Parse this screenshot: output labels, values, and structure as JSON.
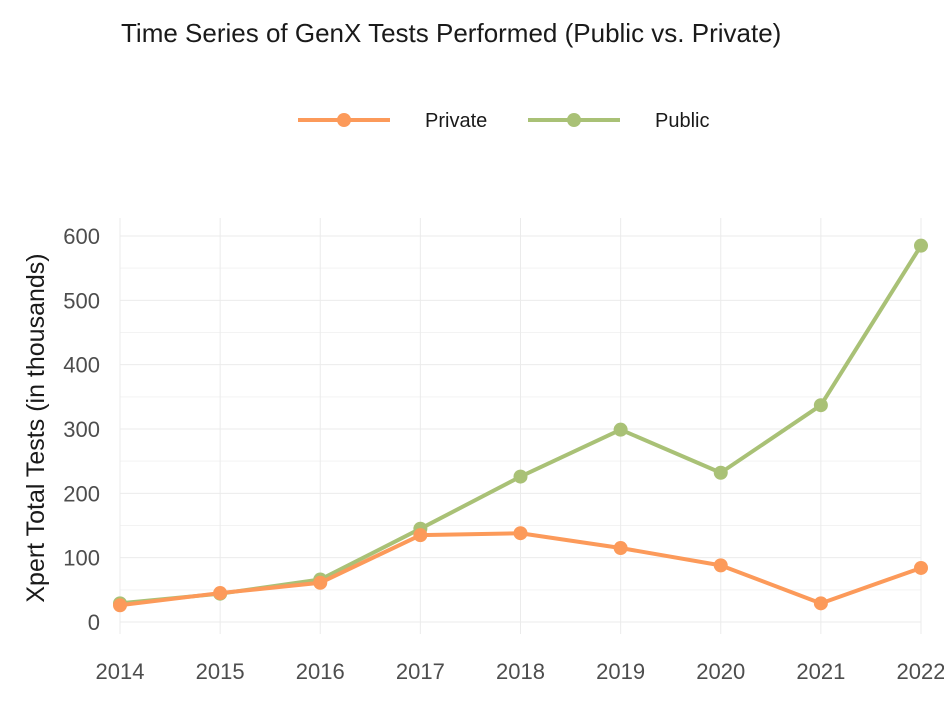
{
  "chart_data": {
    "type": "line",
    "title": "Time Series of GenX Tests Performed (Public vs. Private)",
    "xlabel": "",
    "ylabel": "Xpert Total Tests (in thousands)",
    "x": [
      "2014",
      "2015",
      "2016",
      "2017",
      "2018",
      "2019",
      "2020",
      "2021",
      "2022"
    ],
    "ylim": [
      0,
      600
    ],
    "yticks": [
      "0",
      "100",
      "200",
      "300",
      "400",
      "500",
      "600"
    ],
    "grid": true,
    "legend_position": "top",
    "series": [
      {
        "name": "Private",
        "color": "#fc9a5a",
        "values": [
          26,
          45,
          61,
          135,
          138,
          115,
          88,
          29,
          84
        ]
      },
      {
        "name": "Public",
        "color": "#a9c176",
        "values": [
          29,
          44,
          66,
          145,
          226,
          299,
          232,
          337,
          585
        ]
      }
    ]
  }
}
